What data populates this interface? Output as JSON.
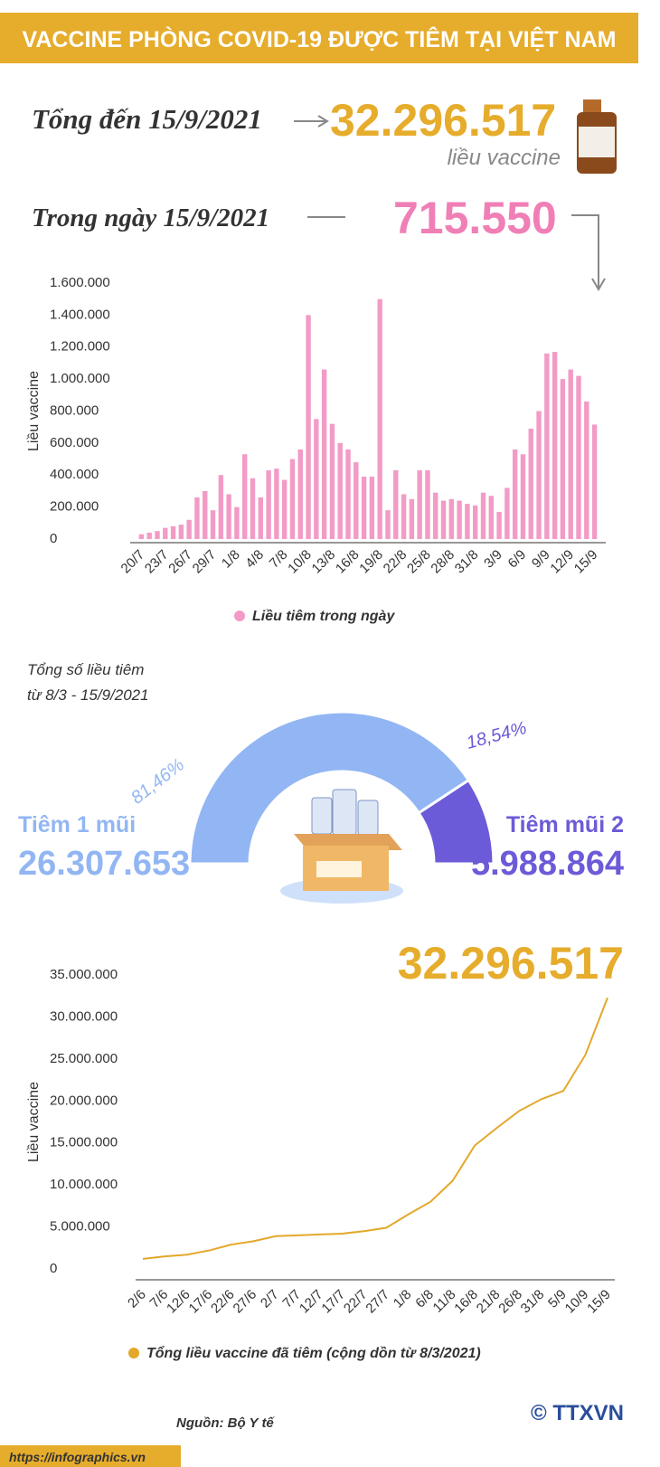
{
  "header": {
    "title": "VACCINE PHÒNG COVID-19 ĐƯỢC TIÊM TẠI VIỆT NAM",
    "total_label": "Tổng đến 15/9/2021",
    "total": "32.296.517",
    "total_unit": "liều vaccine",
    "daily_label": "Trong ngày 15/9/2021",
    "daily": "715.550"
  },
  "chart_data": [
    {
      "type": "bar",
      "ylabel": "Liều vaccine",
      "categories": [
        "20/7",
        null,
        null,
        "23/7",
        null,
        null,
        "26/7",
        null,
        null,
        "29/7",
        null,
        null,
        "1/8",
        null,
        null,
        "4/8",
        null,
        null,
        "7/8",
        null,
        null,
        "10/8",
        null,
        null,
        "13/8",
        null,
        null,
        "16/8",
        null,
        null,
        "19/8",
        null,
        null,
        "22/8",
        null,
        null,
        "25/8",
        null,
        null,
        "28/8",
        null,
        null,
        "31/8",
        null,
        null,
        "3/9",
        null,
        null,
        "6/9",
        null,
        null,
        "9/9",
        null,
        null,
        "12/9",
        null,
        null,
        "15/9"
      ],
      "series": [
        {
          "name": "Liều tiêm trong ngày",
          "color": "#f29bc6",
          "values": [
            30000,
            40000,
            50000,
            70000,
            80000,
            90000,
            120000,
            260000,
            300000,
            180000,
            400000,
            280000,
            200000,
            530000,
            380000,
            260000,
            430000,
            440000,
            370000,
            500000,
            560000,
            1400000,
            750000,
            1060000,
            720000,
            600000,
            560000,
            480000,
            390000,
            390000,
            1500000,
            180000,
            430000,
            280000,
            250000,
            430000,
            430000,
            290000,
            240000,
            250000,
            240000,
            220000,
            210000,
            290000,
            270000,
            170000,
            320000,
            560000,
            530000,
            690000,
            800000,
            1160000,
            1170000,
            1000000,
            1060000,
            1020000,
            860000,
            715550
          ]
        }
      ],
      "ylim": [
        0,
        1600000
      ],
      "yticks": [
        0,
        {
          "value": 200000,
          "label": "200.000"
        },
        {
          "value": 400000,
          "label": "400.000"
        },
        {
          "value": 600000,
          "label": "600.000"
        },
        {
          "value": 800000,
          "label": "800.000"
        },
        {
          "value": 1000000,
          "label": "1.000.000"
        },
        {
          "value": 1200000,
          "label": "1.200.000"
        },
        {
          "value": 1400000,
          "label": "1.400.000"
        },
        {
          "value": 1600000,
          "label": "1.600.000"
        }
      ]
    },
    {
      "type": "pie",
      "title": "Tổng số liều tiêm",
      "subtitle": "từ 8/3 - 15/9/2021",
      "categories": [
        "Tiêm 1 mũi",
        "Tiêm mũi 2"
      ],
      "values": [
        81.46,
        18.54
      ],
      "value_labels": [
        "81,46%",
        "18,54%"
      ],
      "colors": [
        "#92b6f3",
        "#6b5bd8"
      ],
      "doses": [
        "26.307.653",
        "5.988.864"
      ]
    },
    {
      "type": "line",
      "ylabel": "Liều vaccine",
      "categories": [
        "2/6",
        "7/6",
        "12/6",
        "17/6",
        "22/6",
        "27/6",
        "2/7",
        "7/7",
        "12/7",
        "17/7",
        "22/7",
        "27/7",
        "1/8",
        "6/8",
        "11/8",
        "16/8",
        "21/8",
        "26/8",
        "31/8",
        "5/9",
        "10/9",
        "15/9"
      ],
      "series": [
        {
          "name": "Tổng liều vaccine đã tiêm (cộng dồn từ 8/3/2021)",
          "color": "#e3a82b",
          "values": [
            1200000,
            1500000,
            1700000,
            2200000,
            2900000,
            3300000,
            3900000,
            4000000,
            4100000,
            4200000,
            4500000,
            4900000,
            6500000,
            8000000,
            10500000,
            14700000,
            16800000,
            18800000,
            20200000,
            21200000,
            25500000,
            32296517
          ]
        }
      ],
      "ylim": [
        0,
        35000000
      ],
      "yticks": [
        0,
        {
          "value": 5000000,
          "label": "5.000.000"
        },
        {
          "value": 10000000,
          "label": "10.000.000"
        },
        {
          "value": 15000000,
          "label": "15.000.000"
        },
        {
          "value": 20000000,
          "label": "20.000.000"
        },
        {
          "value": 25000000,
          "label": "25.000.000"
        },
        {
          "value": 30000000,
          "label": "30.000.000"
        },
        {
          "value": 35000000,
          "label": "35.000.000"
        }
      ]
    }
  ],
  "footer": {
    "source": "Nguồn: Bộ Y tế",
    "url": "https://infographics.vn",
    "agency": "© TTXVN"
  }
}
